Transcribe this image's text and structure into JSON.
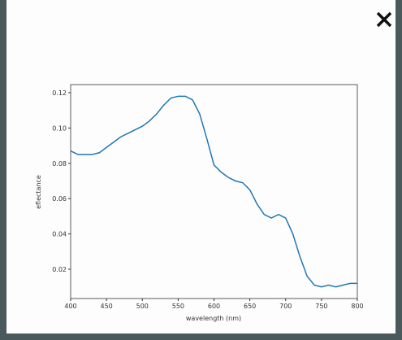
{
  "chart_data": {
    "type": "line",
    "xlabel": "wavelength (nm)",
    "ylabel": "eflectance",
    "x": [
      400,
      410,
      420,
      430,
      440,
      450,
      460,
      470,
      480,
      490,
      500,
      510,
      520,
      530,
      540,
      550,
      560,
      570,
      580,
      590,
      600,
      610,
      620,
      630,
      640,
      650,
      660,
      670,
      680,
      690,
      700,
      710,
      720,
      730,
      740,
      750,
      760,
      770,
      780,
      790,
      800
    ],
    "series": [
      {
        "color": "#1f77b4",
        "values": [
          0.087,
          0.085,
          0.085,
          0.085,
          0.086,
          0.089,
          0.092,
          0.095,
          0.097,
          0.099,
          0.101,
          0.104,
          0.108,
          0.113,
          0.117,
          0.118,
          0.118,
          0.116,
          0.108,
          0.094,
          0.079,
          0.075,
          0.072,
          0.07,
          0.069,
          0.065,
          0.057,
          0.051,
          0.049,
          0.051,
          0.049,
          0.04,
          0.027,
          0.016,
          0.011,
          0.01,
          0.011,
          0.01,
          0.011,
          0.012,
          0.012
        ]
      }
    ],
    "xlim": [
      400,
      800
    ],
    "xticks": [
      400,
      450,
      500,
      550,
      600,
      650,
      700,
      750,
      800
    ],
    "ylim": [
      0.0034,
      0.1246
    ],
    "yticks": [
      0.02,
      0.04,
      0.06,
      0.08,
      {
        "value": 0.1,
        "label": "0.10"
      },
      0.12
    ]
  }
}
